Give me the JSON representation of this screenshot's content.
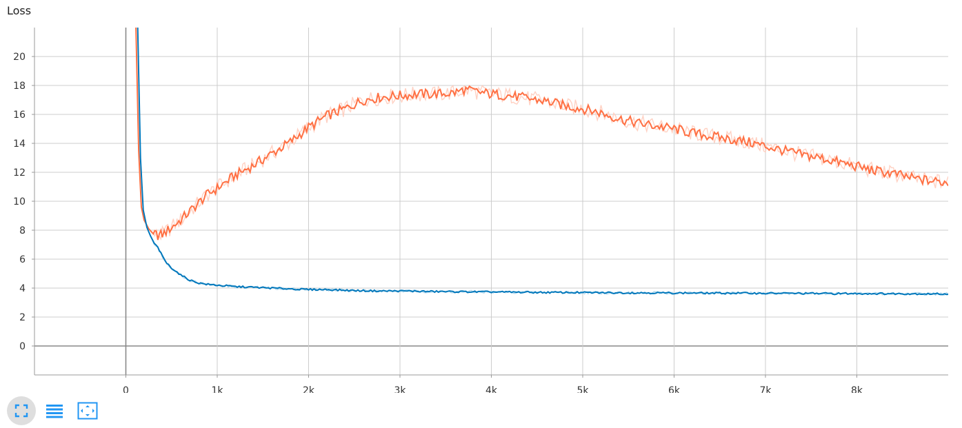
{
  "chart_data": {
    "type": "line",
    "title": "Loss",
    "xlabel": "",
    "ylabel": "",
    "x_ticks": [
      "0",
      "1k",
      "2k",
      "3k",
      "4k",
      "5k",
      "6k",
      "7k",
      "8k"
    ],
    "x_tick_values": [
      0,
      1000,
      2000,
      3000,
      4000,
      5000,
      6000,
      7000,
      8000
    ],
    "y_ticks": [
      "0",
      "2",
      "4",
      "6",
      "8",
      "10",
      "12",
      "14",
      "16",
      "18",
      "20"
    ],
    "y_tick_values": [
      0,
      2,
      4,
      6,
      8,
      10,
      12,
      14,
      16,
      18,
      20
    ],
    "xlim": [
      -1000,
      9000
    ],
    "ylim": [
      -2,
      22
    ],
    "grid": true,
    "legend": "none",
    "series": [
      {
        "color": "#ff7043",
        "smoothing_color": "#ffccbc",
        "points": [
          [
            110,
            22
          ],
          [
            140,
            13.5
          ],
          [
            170,
            9.6
          ],
          [
            200,
            8.7
          ],
          [
            250,
            8.1
          ],
          [
            300,
            7.75
          ],
          [
            350,
            7.65
          ],
          [
            400,
            7.7
          ],
          [
            500,
            8.2
          ],
          [
            600,
            8.7
          ],
          [
            700,
            9.3
          ],
          [
            800,
            9.9
          ],
          [
            900,
            10.5
          ],
          [
            1000,
            10.9
          ],
          [
            1200,
            11.8
          ],
          [
            1400,
            12.5
          ],
          [
            1600,
            13.3
          ],
          [
            1800,
            14.1
          ],
          [
            2000,
            15.1
          ],
          [
            2200,
            15.9
          ],
          [
            2400,
            16.4
          ],
          [
            2600,
            17.0
          ],
          [
            2800,
            17.2
          ],
          [
            3000,
            17.3
          ],
          [
            3200,
            17.4
          ],
          [
            3400,
            17.4
          ],
          [
            3600,
            17.5
          ],
          [
            3700,
            17.7
          ],
          [
            3800,
            17.6
          ],
          [
            4000,
            17.4
          ],
          [
            4200,
            17.3
          ],
          [
            4400,
            17.1
          ],
          [
            4600,
            16.9
          ],
          [
            4800,
            16.6
          ],
          [
            5000,
            16.4
          ],
          [
            5200,
            16.1
          ],
          [
            5400,
            15.7
          ],
          [
            5600,
            15.4
          ],
          [
            5800,
            15.2
          ],
          [
            6000,
            15.0
          ],
          [
            6200,
            14.7
          ],
          [
            6400,
            14.5
          ],
          [
            6600,
            14.3
          ],
          [
            6800,
            14.1
          ],
          [
            7000,
            13.8
          ],
          [
            7200,
            13.5
          ],
          [
            7400,
            13.2
          ],
          [
            7600,
            13.0
          ],
          [
            7800,
            12.7
          ],
          [
            8000,
            12.4
          ],
          [
            8200,
            12.1
          ],
          [
            8400,
            11.9
          ],
          [
            8600,
            11.6
          ],
          [
            8800,
            11.4
          ],
          [
            9000,
            11.3
          ]
        ]
      },
      {
        "color": "#0077bb",
        "smoothing_color": "#a7d3ea",
        "points": [
          [
            130,
            22
          ],
          [
            160,
            13.0
          ],
          [
            190,
            9.4
          ],
          [
            230,
            8.2
          ],
          [
            270,
            7.6
          ],
          [
            310,
            7.1
          ],
          [
            350,
            6.8
          ],
          [
            400,
            6.2
          ],
          [
            450,
            5.7
          ],
          [
            500,
            5.4
          ],
          [
            600,
            4.9
          ],
          [
            700,
            4.55
          ],
          [
            800,
            4.35
          ],
          [
            900,
            4.25
          ],
          [
            1000,
            4.2
          ],
          [
            1200,
            4.1
          ],
          [
            1400,
            4.05
          ],
          [
            1600,
            4.0
          ],
          [
            1800,
            3.95
          ],
          [
            2000,
            3.9
          ],
          [
            2200,
            3.9
          ],
          [
            2400,
            3.85
          ],
          [
            2600,
            3.82
          ],
          [
            2800,
            3.8
          ],
          [
            3000,
            3.8
          ],
          [
            3200,
            3.78
          ],
          [
            3400,
            3.76
          ],
          [
            3600,
            3.75
          ],
          [
            3800,
            3.74
          ],
          [
            4000,
            3.73
          ],
          [
            4200,
            3.72
          ],
          [
            4400,
            3.71
          ],
          [
            4600,
            3.7
          ],
          [
            4800,
            3.7
          ],
          [
            5000,
            3.69
          ],
          [
            5200,
            3.68
          ],
          [
            5400,
            3.68
          ],
          [
            5600,
            3.67
          ],
          [
            5800,
            3.67
          ],
          [
            6000,
            3.66
          ],
          [
            6200,
            3.66
          ],
          [
            6400,
            3.65
          ],
          [
            6600,
            3.65
          ],
          [
            6800,
            3.65
          ],
          [
            7000,
            3.64
          ],
          [
            7200,
            3.64
          ],
          [
            7400,
            3.63
          ],
          [
            7600,
            3.63
          ],
          [
            7800,
            3.62
          ],
          [
            8000,
            3.62
          ],
          [
            8200,
            3.62
          ],
          [
            8400,
            3.61
          ],
          [
            8600,
            3.61
          ],
          [
            8800,
            3.6
          ],
          [
            9000,
            3.6
          ]
        ]
      }
    ]
  },
  "toolbar": [
    {
      "icon": "fullscreen-icon",
      "active": true
    },
    {
      "icon": "list-icon",
      "active": false
    },
    {
      "icon": "fit-domain-icon",
      "active": false
    }
  ],
  "colors": {
    "grid": "#cccccc",
    "axis": "#999999",
    "zero_line": "#888888",
    "toolbar_icon": "#2196f3"
  }
}
